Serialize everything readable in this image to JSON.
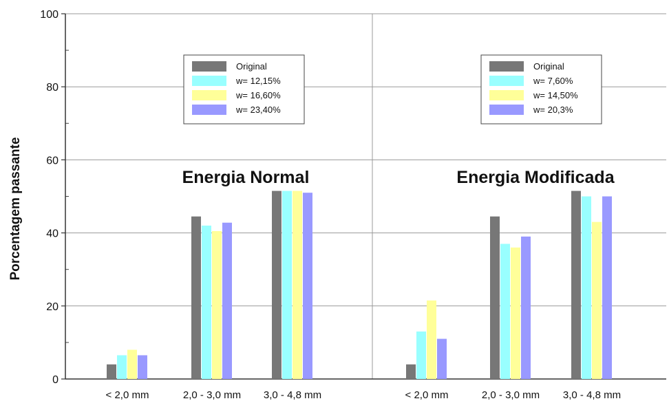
{
  "chart_data": {
    "type": "bar",
    "ylabel": "Porcentagem passante",
    "ylim": [
      0,
      100
    ],
    "yticks": [
      0,
      20,
      40,
      60,
      80,
      100
    ],
    "grid": true,
    "colors": {
      "original": "#777777",
      "cyan": "#99ffff",
      "yellow": "#ffff99",
      "purple": "#9999ff"
    },
    "panels": [
      {
        "title": "Energia Normal",
        "categories": [
          "< 2,0 mm",
          "2,0 - 3,0 mm",
          "3,0 - 4,8 mm"
        ],
        "series": [
          {
            "name": "Original",
            "color": "#777777",
            "values": [
              4,
              44.5,
              51.5
            ]
          },
          {
            "name": "w= 12,15%",
            "color": "#99ffff",
            "values": [
              6.5,
              42,
              51.5
            ]
          },
          {
            "name": "w= 16,60%",
            "color": "#ffff99",
            "values": [
              8,
              40.5,
              51.5
            ]
          },
          {
            "name": "w= 23,40%",
            "color": "#9999ff",
            "values": [
              6.5,
              42.8,
              51
            ]
          }
        ]
      },
      {
        "title": "Energia Modificada",
        "categories": [
          "< 2,0 mm",
          "2,0 - 3,0 mm",
          "3,0 - 4,8 mm"
        ],
        "series": [
          {
            "name": "Original",
            "color": "#777777",
            "values": [
              4,
              44.5,
              51.5
            ]
          },
          {
            "name": "w= 7,60%",
            "color": "#99ffff",
            "values": [
              13,
              37,
              50
            ]
          },
          {
            "name": "w= 14,50%",
            "color": "#ffff99",
            "values": [
              21.5,
              36,
              43
            ]
          },
          {
            "name": "w= 20,3%",
            "color": "#9999ff",
            "values": [
              11,
              39,
              50
            ]
          }
        ]
      }
    ]
  }
}
